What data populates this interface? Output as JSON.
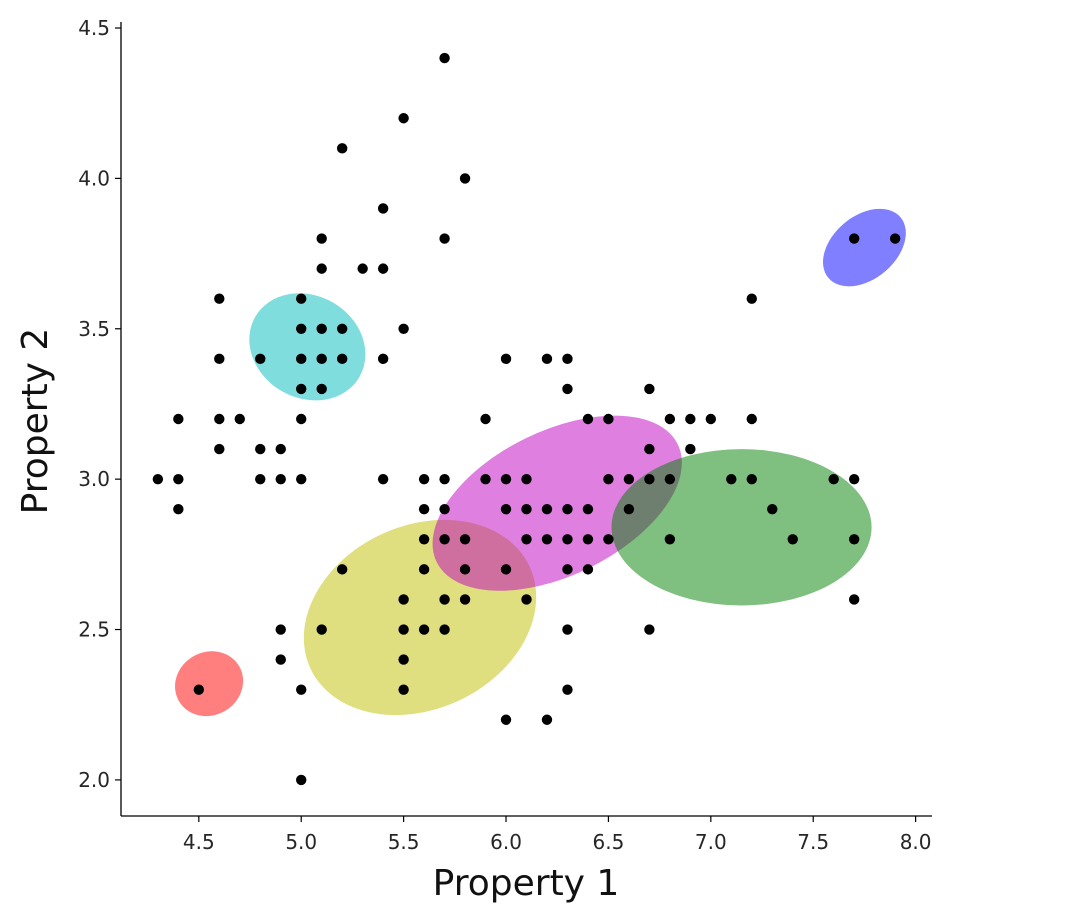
{
  "chart_data": {
    "type": "scatter",
    "xlabel": "Property 1",
    "ylabel": "Property 2",
    "xlim": [
      4.12,
      8.08
    ],
    "ylim": [
      1.88,
      4.52
    ],
    "xticks": [
      "4.5",
      "5.0",
      "5.5",
      "6.0",
      "6.5",
      "7.0",
      "7.5",
      "8.0"
    ],
    "yticks": [
      "2.0",
      "2.5",
      "3.0",
      "3.5",
      "4.0",
      "4.5"
    ],
    "grid": false,
    "point_color": "#000000",
    "points": [
      [
        4.3,
        3.0
      ],
      [
        4.4,
        3.0
      ],
      [
        4.4,
        2.9
      ],
      [
        4.4,
        3.2
      ],
      [
        4.5,
        2.3
      ],
      [
        4.6,
        3.6
      ],
      [
        4.6,
        3.4
      ],
      [
        4.6,
        3.2
      ],
      [
        4.6,
        3.1
      ],
      [
        4.7,
        3.2
      ],
      [
        4.8,
        3.4
      ],
      [
        4.8,
        3.1
      ],
      [
        4.8,
        3.0
      ],
      [
        4.9,
        3.1
      ],
      [
        4.9,
        3.0
      ],
      [
        4.9,
        2.5
      ],
      [
        4.9,
        2.4
      ],
      [
        5.0,
        3.6
      ],
      [
        5.0,
        3.5
      ],
      [
        5.0,
        3.4
      ],
      [
        5.0,
        3.3
      ],
      [
        5.0,
        3.2
      ],
      [
        5.0,
        3.0
      ],
      [
        5.0,
        2.3
      ],
      [
        5.0,
        2.0
      ],
      [
        5.1,
        3.8
      ],
      [
        5.1,
        3.7
      ],
      [
        5.1,
        3.5
      ],
      [
        5.1,
        3.4
      ],
      [
        5.1,
        3.3
      ],
      [
        5.1,
        2.5
      ],
      [
        5.2,
        4.1
      ],
      [
        5.2,
        3.5
      ],
      [
        5.2,
        3.4
      ],
      [
        5.2,
        2.7
      ],
      [
        5.3,
        3.7
      ],
      [
        5.4,
        3.9
      ],
      [
        5.4,
        3.7
      ],
      [
        5.4,
        3.4
      ],
      [
        5.4,
        3.0
      ],
      [
        5.5,
        4.2
      ],
      [
        5.5,
        3.5
      ],
      [
        5.5,
        2.6
      ],
      [
        5.5,
        2.5
      ],
      [
        5.5,
        2.4
      ],
      [
        5.5,
        2.3
      ],
      [
        5.6,
        3.0
      ],
      [
        5.6,
        2.9
      ],
      [
        5.6,
        2.8
      ],
      [
        5.6,
        2.7
      ],
      [
        5.6,
        2.5
      ],
      [
        5.7,
        4.4
      ],
      [
        5.7,
        3.8
      ],
      [
        5.7,
        3.0
      ],
      [
        5.7,
        2.9
      ],
      [
        5.7,
        2.8
      ],
      [
        5.7,
        2.6
      ],
      [
        5.7,
        2.5
      ],
      [
        5.8,
        4.0
      ],
      [
        5.8,
        2.8
      ],
      [
        5.8,
        2.7
      ],
      [
        5.8,
        2.6
      ],
      [
        5.9,
        3.2
      ],
      [
        5.9,
        3.0
      ],
      [
        6.0,
        3.4
      ],
      [
        6.0,
        3.0
      ],
      [
        6.0,
        2.9
      ],
      [
        6.0,
        2.7
      ],
      [
        6.0,
        2.2
      ],
      [
        6.1,
        3.0
      ],
      [
        6.1,
        2.9
      ],
      [
        6.1,
        2.8
      ],
      [
        6.1,
        2.6
      ],
      [
        6.2,
        3.4
      ],
      [
        6.2,
        2.9
      ],
      [
        6.2,
        2.8
      ],
      [
        6.2,
        2.2
      ],
      [
        6.3,
        3.4
      ],
      [
        6.3,
        3.3
      ],
      [
        6.3,
        2.9
      ],
      [
        6.3,
        2.8
      ],
      [
        6.3,
        2.7
      ],
      [
        6.3,
        2.5
      ],
      [
        6.3,
        2.3
      ],
      [
        6.4,
        3.2
      ],
      [
        6.4,
        2.9
      ],
      [
        6.4,
        2.8
      ],
      [
        6.4,
        2.7
      ],
      [
        6.5,
        3.2
      ],
      [
        6.5,
        3.0
      ],
      [
        6.5,
        2.8
      ],
      [
        6.6,
        3.0
      ],
      [
        6.6,
        2.9
      ],
      [
        6.7,
        3.3
      ],
      [
        6.7,
        3.1
      ],
      [
        6.7,
        3.0
      ],
      [
        6.7,
        2.5
      ],
      [
        6.8,
        3.2
      ],
      [
        6.8,
        3.0
      ],
      [
        6.8,
        2.8
      ],
      [
        6.9,
        3.2
      ],
      [
        6.9,
        3.1
      ],
      [
        7.0,
        3.2
      ],
      [
        7.1,
        3.0
      ],
      [
        7.2,
        3.6
      ],
      [
        7.2,
        3.2
      ],
      [
        7.2,
        3.0
      ],
      [
        7.3,
        2.9
      ],
      [
        7.4,
        2.8
      ],
      [
        7.6,
        3.0
      ],
      [
        7.7,
        3.8
      ],
      [
        7.7,
        3.0
      ],
      [
        7.7,
        2.8
      ],
      [
        7.7,
        2.6
      ],
      [
        7.9,
        3.8
      ]
    ],
    "ellipses": [
      {
        "cx": 5.03,
        "cy": 3.44,
        "w": 0.5,
        "h": 0.4,
        "angle": 60,
        "color": "#00bcbc"
      },
      {
        "cx": 4.55,
        "cy": 2.32,
        "w": 0.34,
        "h": 0.21,
        "angle": 30,
        "color": "#ff0000"
      },
      {
        "cx": 5.58,
        "cy": 2.54,
        "w": 1.18,
        "h": 0.61,
        "angle": 25,
        "color": "#bfbf00"
      },
      {
        "cx": 6.25,
        "cy": 2.92,
        "w": 1.31,
        "h": 0.48,
        "angle": 26,
        "color": "#bf00bf"
      },
      {
        "cx": 7.15,
        "cy": 2.84,
        "w": 1.27,
        "h": 0.52,
        "angle": 0,
        "color": "#008000"
      },
      {
        "cx": 7.75,
        "cy": 3.77,
        "w": 0.46,
        "h": 0.21,
        "angle": 40,
        "color": "#0000ff"
      }
    ]
  }
}
